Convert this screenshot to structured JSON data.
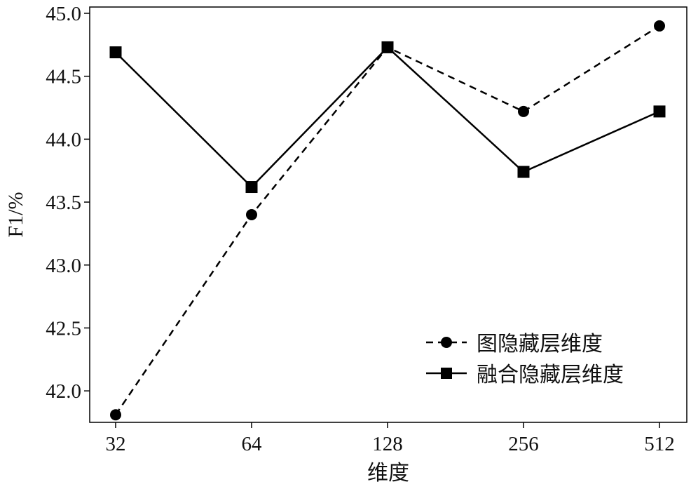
{
  "chart_data": {
    "type": "line",
    "title": "",
    "xlabel": "维度",
    "ylabel": "F1/%",
    "categories": [
      "32",
      "64",
      "128",
      "256",
      "512"
    ],
    "ylim": [
      41.75,
      45.05
    ],
    "yticks": [
      "42.0",
      "42.5",
      "43.0",
      "43.5",
      "44.0",
      "44.5",
      "45.0"
    ],
    "legend_position": "bottom-right",
    "grid": false,
    "series": [
      {
        "name": "图隐藏层维度",
        "values": [
          41.81,
          43.4,
          44.73,
          44.22,
          44.9
        ],
        "line_style": "dashed",
        "marker": "circle",
        "color": "#000000"
      },
      {
        "name": "融合隐藏层维度",
        "values": [
          44.69,
          43.62,
          44.73,
          43.74,
          44.22
        ],
        "line_style": "solid",
        "marker": "square",
        "color": "#000000"
      }
    ]
  }
}
